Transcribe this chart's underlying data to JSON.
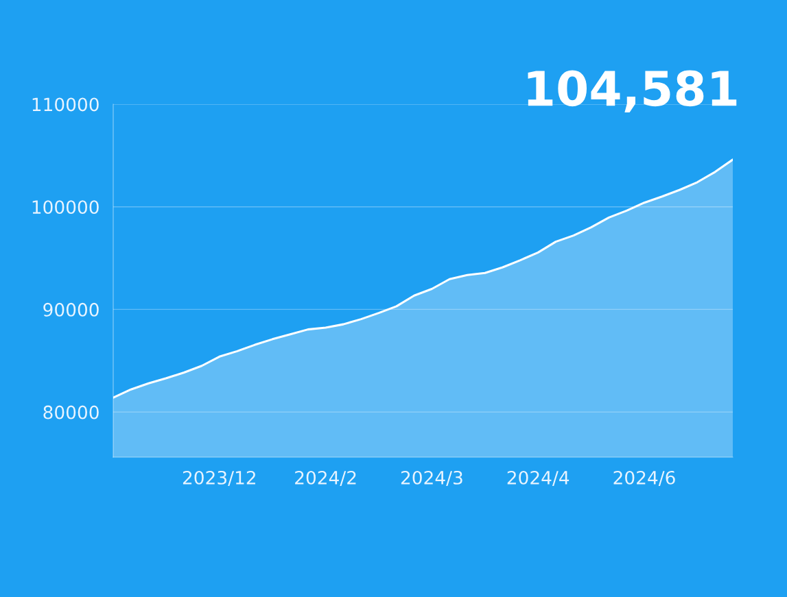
{
  "chart_data": {
    "type": "area",
    "categories": [
      null,
      null,
      null,
      null,
      null,
      null,
      "2023/12",
      null,
      null,
      null,
      null,
      null,
      "2024/2",
      null,
      null,
      null,
      null,
      null,
      "2024/3",
      null,
      null,
      null,
      null,
      null,
      "2024/4",
      null,
      null,
      null,
      null,
      null,
      "2024/6",
      null,
      null,
      null,
      null,
      null
    ],
    "series": [
      {
        "color": "#ffffff",
        "values": [
          81400,
          82200,
          82800,
          83300,
          83850,
          84500,
          85400,
          85930,
          86550,
          87100,
          87570,
          88050,
          88230,
          88550,
          89050,
          89650,
          90300,
          91350,
          92000,
          92950,
          93350,
          93550,
          94100,
          94800,
          95550,
          96600,
          97200,
          98000,
          98950,
          99620,
          100400,
          101000,
          101650,
          102400,
          103400,
          104600
        ]
      }
    ],
    "ylim": [
      75600,
      110000
    ],
    "yticks": [
      80000,
      90000,
      100000,
      110000
    ],
    "grid": "y",
    "legend": false,
    "annotations": [
      "104,581"
    ]
  }
}
